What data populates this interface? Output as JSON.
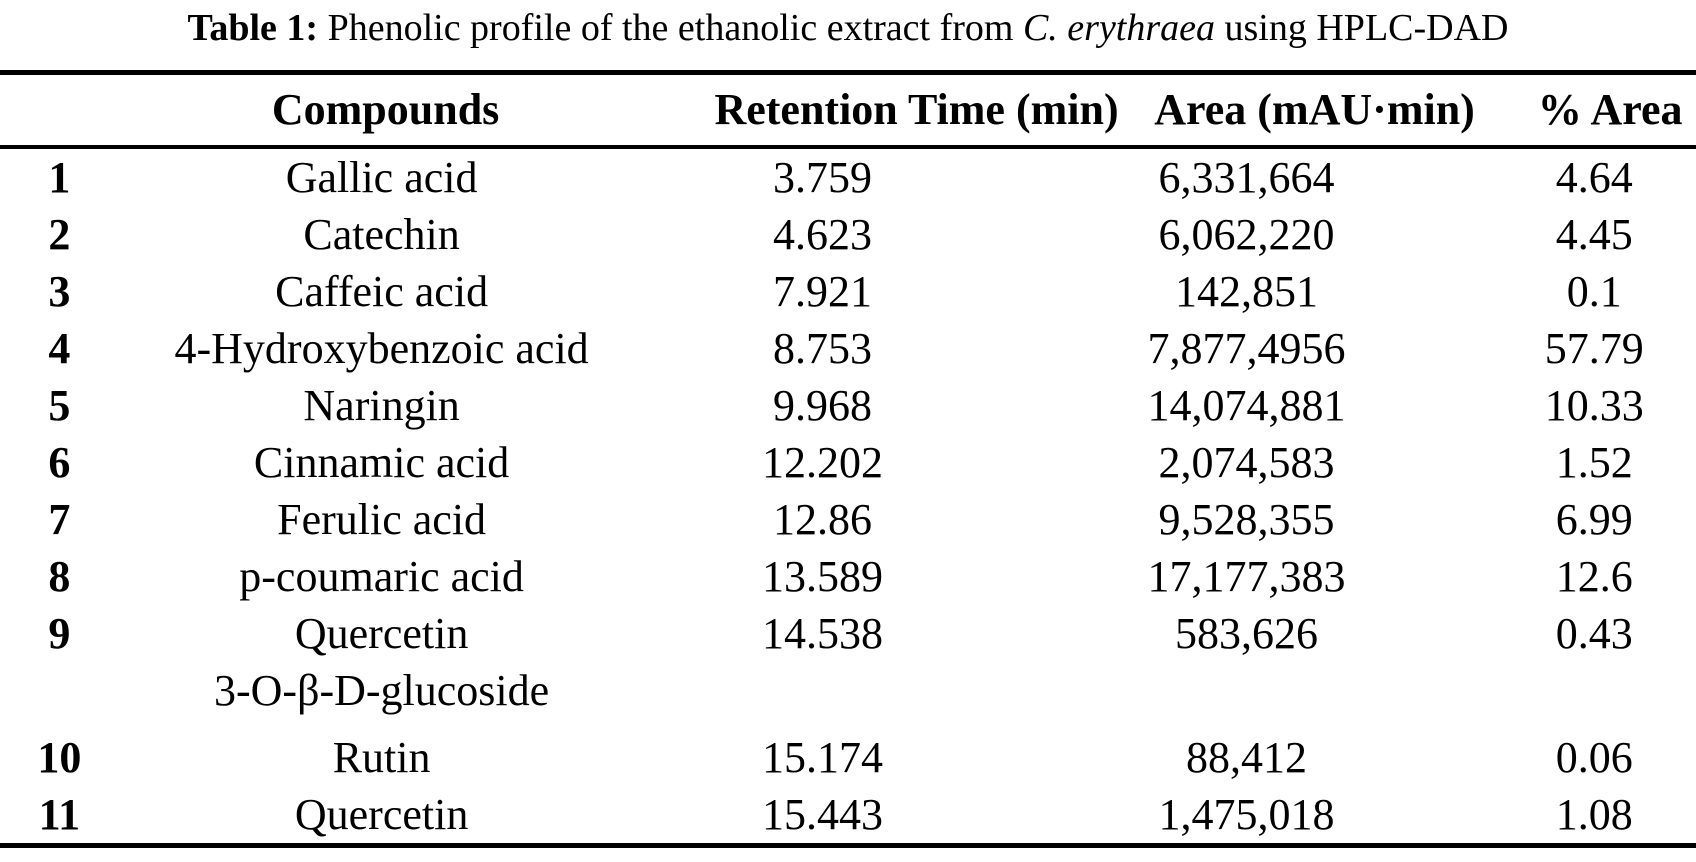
{
  "title": {
    "label": "Table 1:",
    "before_species": " Phenolic profile of the ethanolic extract from ",
    "species": "C. erythraea",
    "after_species": " using HPLC-DAD"
  },
  "table": {
    "headers": {
      "number": "",
      "compounds": "Compounds",
      "retention_time": "Retention Time (min)",
      "area": "Area (mAU·min)",
      "percent_area": "% Area"
    },
    "rows": [
      {
        "no": "1",
        "compound": "Gallic acid",
        "retention_time": "3.759",
        "area": "6,331,664",
        "percent_area": "4.64"
      },
      {
        "no": "2",
        "compound": "Catechin",
        "retention_time": "4.623",
        "area": "6,062,220",
        "percent_area": "4.45"
      },
      {
        "no": "3",
        "compound": "Caffeic acid",
        "retention_time": "7.921",
        "area": "142,851",
        "percent_area": "0.1"
      },
      {
        "no": "4",
        "compound": "4-Hydroxybenzoic acid",
        "retention_time": "8.753",
        "area": "7,877,4956",
        "percent_area": "57.79"
      },
      {
        "no": "5",
        "compound": "Naringin",
        "retention_time": "9.968",
        "area": "14,074,881",
        "percent_area": "10.33"
      },
      {
        "no": "6",
        "compound": "Cinnamic acid",
        "retention_time": "12.202",
        "area": "2,074,583",
        "percent_area": "1.52"
      },
      {
        "no": "7",
        "compound": "Ferulic acid",
        "retention_time": "12.86",
        "area": "9,528,355",
        "percent_area": "6.99"
      },
      {
        "no": "8",
        "compound": "p-coumaric acid",
        "retention_time": "13.589",
        "area": "17,177,383",
        "percent_area": "12.6"
      },
      {
        "no": "9",
        "compound": "Quercetin",
        "compound_line2": "3-O-β-D-glucoside",
        "retention_time": "14.538",
        "area": "583,626",
        "percent_area": "0.43"
      },
      {
        "no": "10",
        "compound": "Rutin",
        "retention_time": "15.174",
        "area": "88,412",
        "percent_area": "0.06"
      },
      {
        "no": "11",
        "compound": "Quercetin",
        "retention_time": "15.443",
        "area": "1,475,018",
        "percent_area": "1.08"
      }
    ]
  }
}
